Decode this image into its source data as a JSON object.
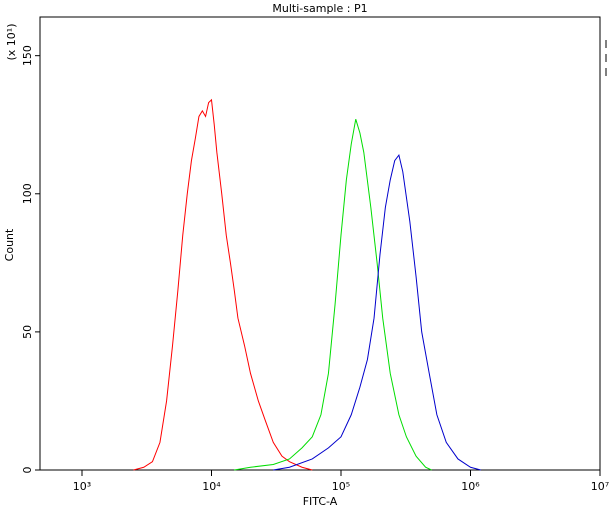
{
  "chart_data": {
    "type": "line",
    "title": "Multi-sample : P1",
    "x_label": "FITC-A",
    "y_label": "Count",
    "y_multiplier": "(x 10¹)",
    "log_x": true,
    "xlim": [
      474,
      10000000
    ],
    "xticks": [
      {
        "value": 1000,
        "label": "10³"
      },
      {
        "value": 10000,
        "label": "10⁴"
      },
      {
        "value": 100000,
        "label": "10⁵"
      },
      {
        "value": 1000000,
        "label": "10⁶"
      },
      {
        "value": 10000000,
        "label": "10⁷"
      }
    ],
    "ylim": [
      0,
      164
    ],
    "yticks": [
      0,
      50,
      100,
      150
    ],
    "series": [
      {
        "color": "#ff0000",
        "x": [
          2500,
          3000,
          3500,
          4000,
          4500,
          5000,
          5500,
          6000,
          6500,
          7000,
          7500,
          8000,
          8500,
          9000,
          9500,
          10000,
          10500,
          11000,
          12000,
          13000,
          14000,
          15000,
          16000,
          18000,
          20000,
          23000,
          26000,
          30000,
          35000,
          40000,
          50000,
          60000
        ],
        "values": [
          0,
          1,
          3,
          10,
          25,
          45,
          65,
          85,
          100,
          112,
          120,
          128,
          130,
          128,
          133,
          134,
          125,
          115,
          100,
          85,
          75,
          65,
          55,
          45,
          35,
          25,
          18,
          10,
          5,
          3,
          1,
          0
        ]
      },
      {
        "color": "#00dd00",
        "x": [
          15000,
          20000,
          30000,
          40000,
          50000,
          60000,
          70000,
          80000,
          90000,
          100000,
          110000,
          120000,
          130000,
          140000,
          150000,
          170000,
          190000,
          210000,
          240000,
          280000,
          320000,
          380000,
          450000,
          500000
        ],
        "values": [
          0,
          1,
          2,
          4,
          8,
          12,
          20,
          35,
          60,
          85,
          105,
          118,
          127,
          122,
          115,
          95,
          75,
          55,
          35,
          20,
          12,
          5,
          1,
          0
        ]
      },
      {
        "color": "#0000cc",
        "x": [
          30000,
          40000,
          60000,
          80000,
          100000,
          120000,
          140000,
          160000,
          180000,
          200000,
          220000,
          240000,
          260000,
          280000,
          300000,
          340000,
          380000,
          420000,
          480000,
          550000,
          650000,
          800000,
          1000000,
          1200000
        ],
        "values": [
          0,
          1,
          4,
          8,
          12,
          20,
          30,
          40,
          55,
          78,
          95,
          105,
          112,
          114,
          108,
          90,
          70,
          50,
          35,
          20,
          10,
          4,
          1,
          0
        ]
      }
    ]
  }
}
